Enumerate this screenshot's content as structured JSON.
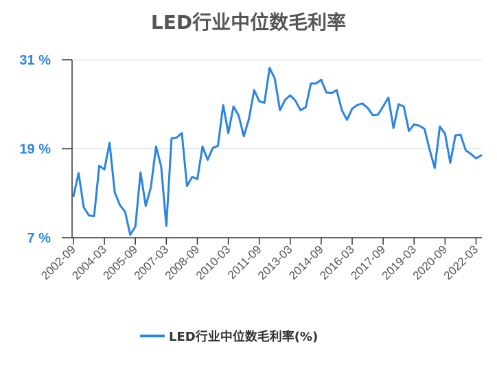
{
  "chart_data": {
    "type": "line",
    "title": "LED行业中位数毛利率",
    "xlabel": "",
    "ylabel": "",
    "ylim": [
      7,
      31
    ],
    "yticks": [
      {
        "value": 7,
        "label": "7 %"
      },
      {
        "value": 19,
        "label": "19 %"
      },
      {
        "value": 31,
        "label": "31 %"
      }
    ],
    "x_tick_labels": [
      "2002-09",
      "2004-03",
      "2005-09",
      "2007-03",
      "2008-09",
      "2010-03",
      "2011-09",
      "2013-03",
      "2014-09",
      "2016-03",
      "2017-09",
      "2019-03",
      "2020-09",
      "2022-03"
    ],
    "legend": "bottom-center",
    "grid": "horizontal",
    "series": [
      {
        "name": "LED行业中位数毛利率(%)",
        "color": "#2a84e2",
        "values": [
          12.6,
          15.7,
          11.1,
          10.0,
          9.9,
          16.7,
          16.2,
          19.8,
          13.1,
          11.4,
          10.5,
          7.4,
          8.5,
          15.8,
          11.3,
          13.8,
          19.3,
          16.6,
          8.6,
          20.4,
          20.5,
          21.1,
          14.0,
          15.2,
          14.9,
          19.3,
          17.5,
          19.1,
          19.4,
          24.9,
          21.1,
          24.7,
          23.5,
          20.7,
          23.0,
          26.9,
          25.4,
          25.2,
          29.9,
          28.5,
          24.2,
          25.6,
          26.2,
          25.5,
          24.2,
          24.6,
          27.8,
          27.8,
          28.3,
          26.6,
          26.5,
          26.9,
          24.2,
          22.9,
          24.4,
          24.9,
          25.1,
          24.5,
          23.5,
          23.6,
          24.7,
          25.9,
          21.8,
          25.0,
          24.7,
          21.4,
          22.3,
          22.1,
          21.7,
          18.9,
          16.4,
          22.0,
          21.0,
          17.1,
          20.8,
          20.9,
          18.8,
          18.3,
          17.7,
          18.1
        ]
      }
    ]
  }
}
